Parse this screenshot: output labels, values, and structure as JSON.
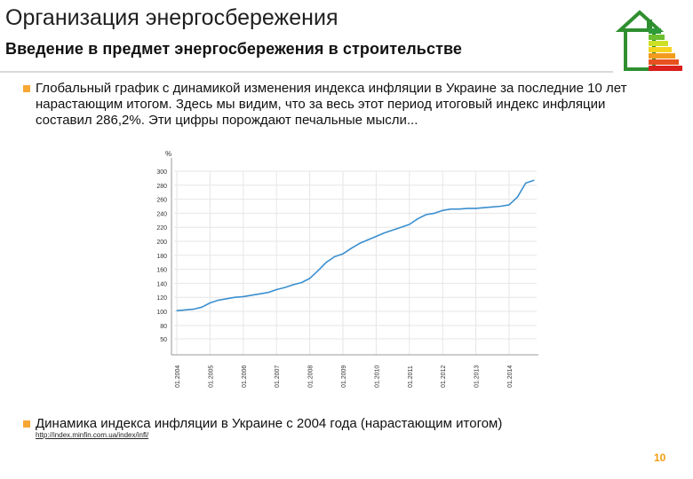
{
  "header": {
    "title": "Организация энергосбережения",
    "subtitle": "Введение в предмет энергосбережения в строительстве"
  },
  "bullets": [
    {
      "text": "Глобальный график с динамикой изменения индекса инфляции в Украине за последние 10 лет нарастающим итогом. Здесь мы видим, что за весь этот период итоговый индекс инфляции составил 286,2%. Эти цифры порождают печальные мысли..."
    },
    {
      "text": "Динамика индекса инфляции в Украине с 2004 года (нарастающим итогом)"
    }
  ],
  "source_url": "http://index.minfin.com.ua/index/infl/",
  "page_number": "10",
  "colors": {
    "accent": "#f7a733",
    "line": "#3a8fd0",
    "grid": "#e6e6e6",
    "page_number": "#f39c12"
  },
  "chart_data": {
    "type": "line",
    "title": "",
    "xlabel": "",
    "ylabel": "%",
    "ylim": [
      50,
      300
    ],
    "yticks": [
      50,
      80,
      100,
      120,
      140,
      160,
      180,
      200,
      220,
      240,
      260,
      280,
      300
    ],
    "ytick_labels": [
      "50",
      "80",
      "100",
      "120",
      "140",
      "160",
      "180",
      "200",
      "220",
      "240",
      "260",
      "280",
      "300"
    ],
    "x_tick_labels": [
      "01.2004",
      "01.2005",
      "01.2006",
      "01.2007",
      "01.2008",
      "01.2009",
      "01.2010",
      "01.2011",
      "01.2012",
      "01.2013",
      "01.2014"
    ],
    "grid": true,
    "series": [
      {
        "x": [
          "01.2004",
          "04.2004",
          "07.2004",
          "10.2004",
          "01.2005",
          "04.2005",
          "07.2005",
          "10.2005",
          "01.2006",
          "04.2006",
          "07.2006",
          "10.2006",
          "01.2007",
          "04.2007",
          "07.2007",
          "10.2007",
          "01.2008",
          "04.2008",
          "07.2008",
          "10.2008",
          "01.2009",
          "04.2009",
          "07.2009",
          "10.2009",
          "01.2010",
          "04.2010",
          "07.2010",
          "10.2010",
          "01.2011",
          "04.2011",
          "07.2011",
          "10.2011",
          "01.2012",
          "04.2012",
          "07.2012",
          "10.2012",
          "01.2013",
          "04.2013",
          "07.2013",
          "10.2013",
          "01.2014",
          "04.2014",
          "07.2014",
          "10.2014"
        ],
        "values": [
          101,
          102,
          103,
          106,
          112,
          116,
          118,
          120,
          121,
          123,
          125,
          127,
          131,
          134,
          138,
          141,
          147,
          158,
          170,
          178,
          182,
          190,
          197,
          202,
          207,
          212,
          216,
          220,
          224,
          232,
          238,
          240,
          244,
          246,
          246,
          247,
          247,
          248,
          249,
          250,
          252,
          263,
          283,
          287
        ]
      }
    ]
  }
}
